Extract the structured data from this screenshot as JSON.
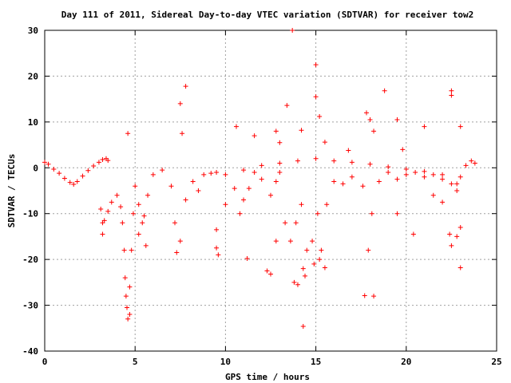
{
  "chart_data": {
    "type": "scatter",
    "title": "Day 111 of 2011, Sidereal Day-to-day VTEC variation (SDTVAR) for receiver tow2",
    "xlabel": "GPS time / hours",
    "ylabel": "SDTVAR / TECUs",
    "xlim": [
      0,
      25
    ],
    "ylim": [
      -40,
      30
    ],
    "xticks": [
      "0",
      "5",
      "10",
      "15",
      "20",
      "25"
    ],
    "yticks": [
      "30",
      "20",
      "10",
      "0",
      "-10",
      "-20",
      "-30",
      "-40"
    ],
    "grid": true,
    "marker": "plus",
    "color": "#ff0000",
    "series": [
      {
        "points": [
          [
            0.0,
            1.2
          ],
          [
            0.2,
            0.8
          ],
          [
            0.5,
            -0.3
          ],
          [
            0.8,
            -1.2
          ],
          [
            1.1,
            -2.3
          ],
          [
            1.4,
            -3.2
          ],
          [
            1.6,
            -3.6
          ],
          [
            1.8,
            -3.0
          ],
          [
            2.1,
            -1.8
          ],
          [
            2.4,
            -0.6
          ],
          [
            2.7,
            0.4
          ],
          [
            3.0,
            1.2
          ],
          [
            3.2,
            1.8
          ],
          [
            3.4,
            2.0
          ],
          [
            3.5,
            1.6
          ],
          [
            3.1,
            -9.0
          ],
          [
            3.2,
            -12.0
          ],
          [
            3.3,
            -11.5
          ],
          [
            3.5,
            -9.5
          ],
          [
            3.7,
            -7.5
          ],
          [
            4.0,
            -6.0
          ],
          [
            4.2,
            -8.5
          ],
          [
            4.3,
            -12.0
          ],
          [
            4.4,
            -18.0
          ],
          [
            4.45,
            -24.0
          ],
          [
            4.5,
            -28.0
          ],
          [
            4.55,
            -30.5
          ],
          [
            4.6,
            -33.0
          ],
          [
            4.7,
            -26.0
          ],
          [
            4.8,
            -18.0
          ],
          [
            4.9,
            -10.0
          ],
          [
            5.0,
            -4.0
          ],
          [
            5.2,
            -8.0
          ],
          [
            5.4,
            -12.0
          ],
          [
            5.5,
            -10.5
          ],
          [
            5.7,
            -6.0
          ],
          [
            6.0,
            -1.5
          ],
          [
            6.5,
            -0.5
          ],
          [
            7.0,
            -4.0
          ],
          [
            7.2,
            -12.0
          ],
          [
            7.3,
            -18.5
          ],
          [
            7.5,
            -16.0
          ],
          [
            7.8,
            -7.0
          ],
          [
            8.2,
            -3.0
          ],
          [
            8.5,
            -5.0
          ],
          [
            8.8,
            -1.5
          ],
          [
            9.2,
            -1.2
          ],
          [
            9.5,
            -1.0
          ],
          [
            9.5,
            -17.5
          ],
          [
            9.6,
            -19.0
          ],
          [
            10.0,
            -8.0
          ],
          [
            10.5,
            -4.5
          ],
          [
            10.8,
            -10.0
          ],
          [
            11.0,
            -7.0
          ],
          [
            11.3,
            -4.5
          ],
          [
            11.6,
            -1.0
          ],
          [
            12.0,
            -2.5
          ],
          [
            12.5,
            -6.0
          ],
          [
            12.8,
            -3.0
          ],
          [
            13.0,
            -1.0
          ],
          [
            13.3,
            -12.0
          ],
          [
            13.6,
            -16.0
          ],
          [
            13.9,
            -12.0
          ],
          [
            14.2,
            -8.0
          ],
          [
            14.3,
            -22.0
          ],
          [
            14.5,
            -18.0
          ],
          [
            14.8,
            -16.0
          ],
          [
            15.1,
            -10.0
          ],
          [
            15.3,
            -18.0
          ],
          [
            15.6,
            -8.0
          ],
          [
            16.0,
            -3.0
          ],
          [
            16.5,
            -3.5
          ],
          [
            17.0,
            -2.0
          ],
          [
            17.6,
            -4.0
          ],
          [
            17.9,
            -18.0
          ],
          [
            18.1,
            -10.0
          ],
          [
            18.5,
            -3.0
          ],
          [
            19.0,
            -1.0
          ],
          [
            19.5,
            -2.5
          ],
          [
            20.0,
            -1.5
          ],
          [
            20.5,
            -1.0
          ],
          [
            21.0,
            -2.0
          ],
          [
            21.5,
            -1.5
          ],
          [
            22.0,
            -2.5
          ],
          [
            22.5,
            -3.5
          ],
          [
            22.8,
            -5.0
          ],
          [
            23.0,
            -2.0
          ],
          [
            23.3,
            0.5
          ],
          [
            23.6,
            1.5
          ],
          [
            23.8,
            1.0
          ],
          [
            10.0,
            -1.5
          ],
          [
            11.0,
            -0.5
          ],
          [
            12.0,
            0.5
          ],
          [
            13.0,
            1.0
          ],
          [
            14.0,
            1.5
          ],
          [
            15.0,
            2.0
          ],
          [
            16.0,
            1.5
          ],
          [
            17.0,
            1.2
          ],
          [
            18.0,
            0.8
          ],
          [
            19.0,
            0.2
          ],
          [
            20.0,
            -0.3
          ],
          [
            21.0,
            -0.8
          ],
          [
            22.0,
            -1.5
          ],
          [
            22.8,
            -3.5
          ],
          [
            13.7,
            30.0
          ],
          [
            15.0,
            22.5
          ],
          [
            7.8,
            17.8
          ],
          [
            7.5,
            14.0
          ],
          [
            18.8,
            16.8
          ],
          [
            13.4,
            13.6
          ],
          [
            15.0,
            15.5
          ],
          [
            22.5,
            15.8
          ],
          [
            22.5,
            16.8
          ],
          [
            15.2,
            11.2
          ],
          [
            4.6,
            7.5
          ],
          [
            11.6,
            7.0
          ],
          [
            12.8,
            8.0
          ],
          [
            13.0,
            5.5
          ],
          [
            14.2,
            8.2
          ],
          [
            15.5,
            5.6
          ],
          [
            17.8,
            12.0
          ],
          [
            18.0,
            10.5
          ],
          [
            18.2,
            8.0
          ],
          [
            19.5,
            10.5
          ],
          [
            21.0,
            9.0
          ],
          [
            23.0,
            9.0
          ],
          [
            7.6,
            7.5
          ],
          [
            10.6,
            9.0
          ],
          [
            16.8,
            3.8
          ],
          [
            19.8,
            4.0
          ],
          [
            5.6,
            -17.0
          ],
          [
            5.2,
            -14.5
          ],
          [
            3.2,
            -14.5
          ],
          [
            4.7,
            -32.0
          ],
          [
            9.5,
            -13.5
          ],
          [
            11.2,
            -19.8
          ],
          [
            12.3,
            -22.5
          ],
          [
            12.5,
            -23.2
          ],
          [
            12.8,
            -16.0
          ],
          [
            13.8,
            -25.0
          ],
          [
            14.0,
            -25.5
          ],
          [
            14.4,
            -23.6
          ],
          [
            14.9,
            -21.0
          ],
          [
            15.2,
            -20.0
          ],
          [
            15.5,
            -21.8
          ],
          [
            17.7,
            -27.9
          ],
          [
            14.3,
            -34.6
          ],
          [
            18.2,
            -28.0
          ],
          [
            19.5,
            -10.0
          ],
          [
            20.4,
            -14.5
          ],
          [
            22.4,
            -14.5
          ],
          [
            22.5,
            -17.0
          ],
          [
            22.8,
            -15.0
          ],
          [
            23.0,
            -21.8
          ],
          [
            23.0,
            -13.0
          ],
          [
            22.0,
            -7.5
          ],
          [
            21.5,
            -6.0
          ]
        ]
      }
    ]
  }
}
